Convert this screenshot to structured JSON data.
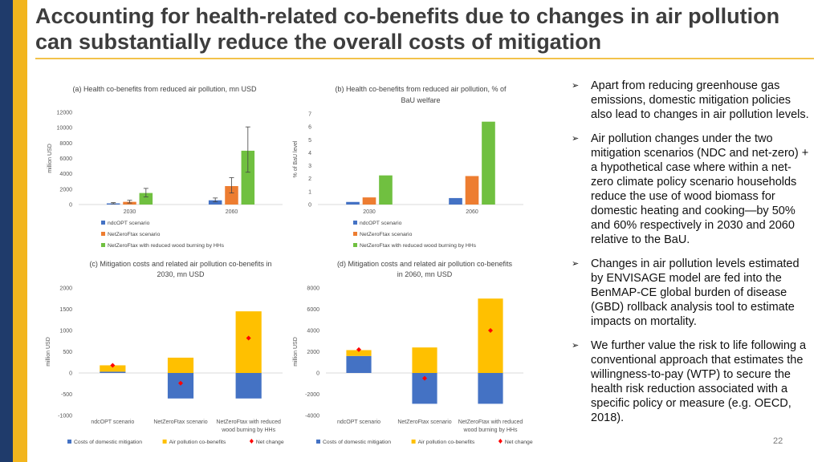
{
  "slide": {
    "title": "Accounting for health-related co-benefits due to changes in air pollution can substantially reduce the overall costs of mitigation",
    "page_number": "22"
  },
  "colors": {
    "blue": "#4472c4",
    "orange": "#ed7d31",
    "green": "#70c040",
    "gold": "#ffc000",
    "net": "#ff0000",
    "navy": "#1f3b6b",
    "accent": "#f2b51d"
  },
  "bullets": [
    "Apart from reducing greenhouse gas emissions, domestic mitigation policies also lead to changes in air pollution levels.",
    "Air pollution changes under the two mitigation scenarios (NDC and net-zero) + a hypothetical case where within a net-zero climate policy scenario households reduce the use of wood biomass for domestic heating and cooking—by 50% and 60% respectively in 2030 and 2060 relative to the BaU.",
    "Changes in air pollution levels estimated by ENVISAGE model are fed into the BenMAP-CE global burden of disease (GBD) rollback analysis tool to estimate impacts on mortality.",
    "We further value the risk to life following a conventional approach that estimates the willingness-to-pay (WTP) to secure the health risk reduction associated with a specific policy or measure (e.g. OECD, 2018)."
  ],
  "chart_data": [
    {
      "id": "a",
      "type": "bar",
      "title": [
        "(a) Health co-benefits from reduced air pollution, mn USD"
      ],
      "ylabel": "million USD",
      "ylim": [
        0,
        12000
      ],
      "yticks": [
        0,
        2000,
        4000,
        6000,
        8000,
        10000,
        12000
      ],
      "categories": [
        "2030",
        "2060"
      ],
      "series": [
        {
          "name": "ndcOPT scenario",
          "color": "#4472c4",
          "values": [
            150,
            550
          ],
          "err_low": [
            100,
            350
          ],
          "err_high": [
            250,
            850
          ]
        },
        {
          "name": "NetZeroFtax scenario",
          "color": "#ed7d31",
          "values": [
            350,
            2400
          ],
          "err_low": [
            200,
            1500
          ],
          "err_high": [
            550,
            3500
          ]
        },
        {
          "name": "NetZeroFtax with reduced wood burning by HHs",
          "color": "#70c040",
          "values": [
            1500,
            7000
          ],
          "err_low": [
            1000,
            4200
          ],
          "err_high": [
            2100,
            10100
          ]
        }
      ]
    },
    {
      "id": "b",
      "type": "bar",
      "title": [
        "(b) Health co-benefits from reduced air pollution, % of",
        "BaU welfare"
      ],
      "ylabel": "% of BaU level",
      "ylim": [
        0,
        7
      ],
      "yticks": [
        0,
        1,
        2,
        3,
        4,
        5,
        6,
        7
      ],
      "categories": [
        "2030",
        "2060"
      ],
      "series": [
        {
          "name": "ndcOPT scenario",
          "color": "#4472c4",
          "values": [
            0.2,
            0.5
          ]
        },
        {
          "name": "NetZeroFtax scenario",
          "color": "#ed7d31",
          "values": [
            0.55,
            2.2
          ]
        },
        {
          "name": "NetZeroFtax with reduced wood burning by HHs",
          "color": "#70c040",
          "values": [
            2.25,
            6.4
          ]
        }
      ]
    },
    {
      "id": "c",
      "type": "bar",
      "title": [
        "(c) Mitigation costs and related air pollution co-benefits in",
        "2030, mn USD"
      ],
      "ylabel": "million USD",
      "ylim": [
        -1000,
        2000
      ],
      "yticks": [
        -1000,
        -500,
        0,
        500,
        1000,
        1500,
        2000
      ],
      "categories": [
        "ndcOPT scenario",
        "NetZeroFtax scenario",
        "NetZeroFtax with reduced wood burning by HHs"
      ],
      "category_lines": [
        [
          "ndcOPT scenario"
        ],
        [
          "NetZeroFtax scenario"
        ],
        [
          "NetZeroFtax with reduced",
          "wood burning by HHs"
        ]
      ],
      "series": [
        {
          "name": "Costs of domestic mitigation",
          "color": "#4472c4",
          "values": [
            30,
            -600,
            -600
          ]
        },
        {
          "name": "Air pollution co-benefits",
          "color": "#ffc000",
          "values": [
            150,
            360,
            1450
          ]
        },
        {
          "name": "Net change",
          "color": "#ff0000",
          "marker": "diamond",
          "values": [
            180,
            -240,
            820
          ]
        }
      ]
    },
    {
      "id": "d",
      "type": "bar",
      "title": [
        "(d) Mitigation costs and related air pollution co-benefits",
        "in 2060, mn USD"
      ],
      "ylabel": "million USD",
      "ylim": [
        -4000,
        8000
      ],
      "yticks": [
        -4000,
        -2000,
        0,
        2000,
        4000,
        6000,
        8000
      ],
      "categories": [
        "ndcOPT scenario",
        "NetZeroFtax scenario",
        "NetZeroFtax with reduced wood burning by HHs"
      ],
      "category_lines": [
        [
          "ndcOPT scenario"
        ],
        [
          "NetZeroFtax scenario"
        ],
        [
          "NetZeroFtax with reduced",
          "wood burning by HHs"
        ]
      ],
      "series": [
        {
          "name": "Costs of domestic mitigation",
          "color": "#4472c4",
          "values": [
            1600,
            -2900,
            -2900
          ]
        },
        {
          "name": "Air pollution co-benefits",
          "color": "#ffc000",
          "values": [
            550,
            2400,
            7000
          ]
        },
        {
          "name": "Net change",
          "color": "#ff0000",
          "marker": "diamond",
          "values": [
            2200,
            -500,
            4000
          ]
        }
      ]
    }
  ]
}
